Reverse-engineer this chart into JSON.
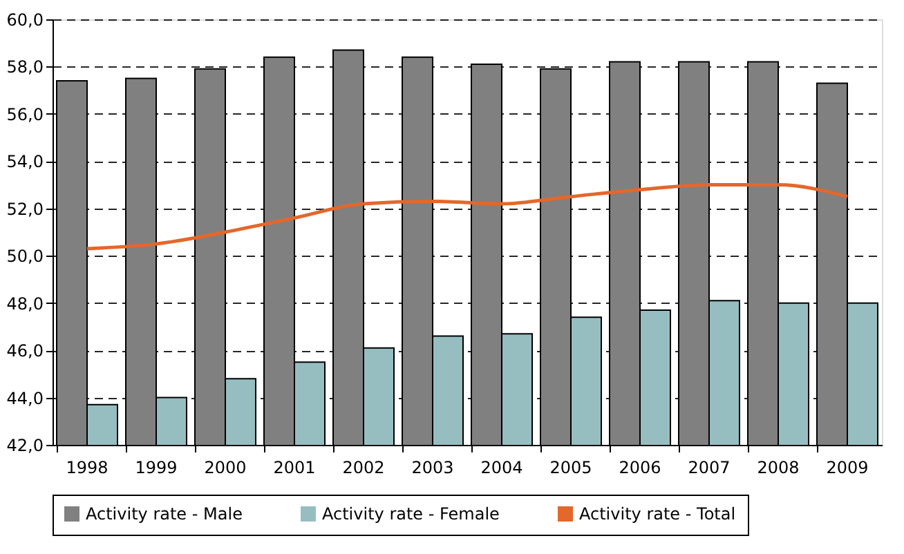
{
  "chart_data": {
    "type": "bar",
    "categories": [
      "1998",
      "1999",
      "2000",
      "2001",
      "2002",
      "2003",
      "2004",
      "2005",
      "2006",
      "2007",
      "2008",
      "2009"
    ],
    "series": [
      {
        "name": "Activity rate - Male",
        "color": "#808080",
        "values": [
          57.4,
          57.5,
          57.9,
          58.4,
          58.7,
          58.4,
          58.1,
          57.9,
          58.2,
          58.2,
          58.2,
          57.3
        ]
      },
      {
        "name": "Activity rate - Female",
        "color": "#96bec1",
        "values": [
          43.7,
          44.0,
          44.8,
          45.5,
          46.1,
          46.6,
          46.7,
          47.4,
          47.7,
          48.1,
          48.0,
          48.0
        ]
      },
      {
        "name": "Activity rate - Total",
        "type": "line",
        "color": "#e4672b",
        "values": [
          50.3,
          50.5,
          51.0,
          51.6,
          52.2,
          52.3,
          52.2,
          52.5,
          52.8,
          53.0,
          53.0,
          52.5
        ]
      }
    ],
    "ylim": [
      42,
      60
    ],
    "yticks": [
      {
        "value": 42,
        "label": "42,0"
      },
      {
        "value": 44,
        "label": "44,0"
      },
      {
        "value": 46,
        "label": "46,0"
      },
      {
        "value": 48,
        "label": "48,0"
      },
      {
        "value": 50,
        "label": "50,0"
      },
      {
        "value": 52,
        "label": "52,0"
      },
      {
        "value": 54,
        "label": "54,0"
      },
      {
        "value": 56,
        "label": "56,0"
      },
      {
        "value": 58,
        "label": "58,0"
      },
      {
        "value": 60,
        "label": "60,0"
      }
    ],
    "grid": "y",
    "legend": "bottom",
    "line_style": "solid",
    "marker": "none"
  }
}
